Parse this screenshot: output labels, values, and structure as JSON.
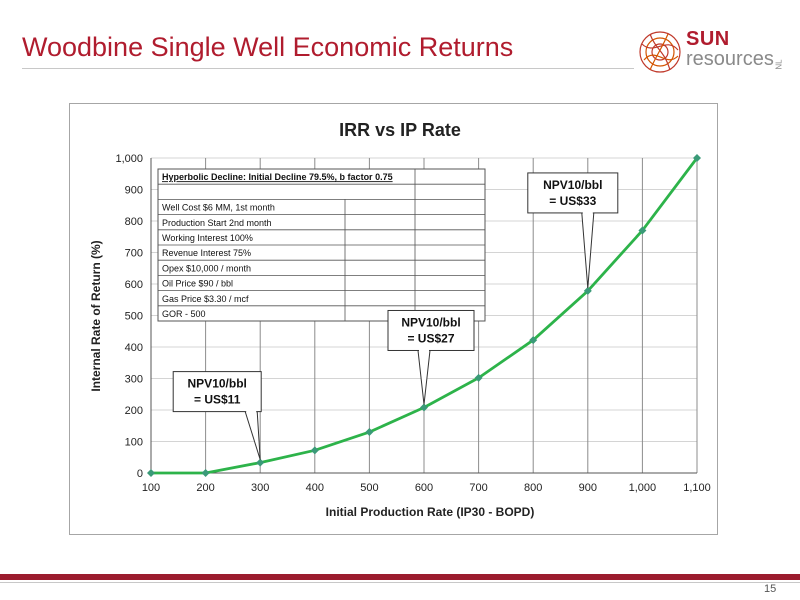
{
  "slide": {
    "title": "Woodbine Single Well Economic Returns",
    "page_number": "15"
  },
  "logo": {
    "word1": "SUN",
    "word2": "resources",
    "suffix": "NL"
  },
  "colors": {
    "title": "#b01c2e",
    "series": "#2db34a",
    "marker": "#3a9a78",
    "footer": "#9b1c2e"
  },
  "chart_data": {
    "type": "line",
    "title": "IRR vs IP Rate",
    "xlabel": "Initial Production Rate (IP30 - BOPD)",
    "ylabel": "Internal Rate of Return (%)",
    "x_ticks": [
      "100",
      "200",
      "300",
      "400",
      "500",
      "600",
      "700",
      "800",
      "900",
      "1,000",
      "1,100"
    ],
    "y_ticks": [
      "0",
      "100",
      "200",
      "300",
      "400",
      "500",
      "600",
      "700",
      "800",
      "900",
      "1,000"
    ],
    "xlim": [
      100,
      1100
    ],
    "ylim": [
      0,
      1000
    ],
    "grid": true,
    "series": [
      {
        "x": [
          100,
          200,
          300,
          400,
          500,
          600,
          700,
          800,
          900,
          1000,
          1100
        ],
        "y": [
          0,
          0,
          33,
          72,
          130,
          208,
          302,
          422,
          578,
          770,
          1000
        ]
      }
    ],
    "assumptions_table": {
      "header": "Hyperbolic Decline:  Initial Decline 79.5%, b factor 0.75",
      "rows": [
        "Well Cost $6 MM, 1st month",
        "Production Start 2nd month",
        "Working Interest 100%",
        "Revenue Interest 75%",
        "Opex $10,000 / month",
        "Oil Price $90 / bbl",
        "Gas Price $3.30 / mcf",
        "GOR - 500"
      ]
    },
    "annotations": [
      {
        "line1": "NPV10/bbl",
        "line2": "= US$11",
        "x": 300,
        "y": 33
      },
      {
        "line1": "NPV10/bbl",
        "line2": "= US$27",
        "x": 600,
        "y": 208
      },
      {
        "line1": "NPV10/bbl",
        "line2": "= US$33",
        "x": 900,
        "y": 578
      }
    ]
  }
}
